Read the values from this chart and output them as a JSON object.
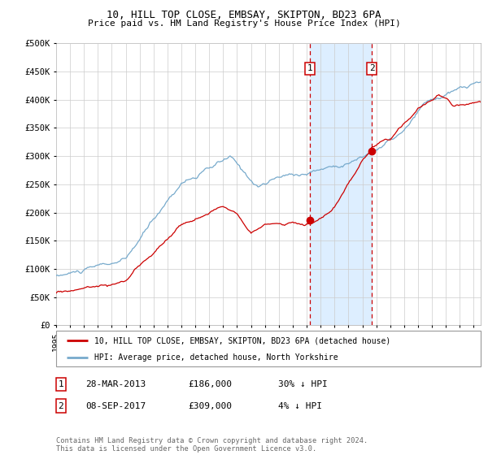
{
  "title1": "10, HILL TOP CLOSE, EMBSAY, SKIPTON, BD23 6PA",
  "title2": "Price paid vs. HM Land Registry's House Price Index (HPI)",
  "ylim": [
    0,
    500000
  ],
  "yticks": [
    0,
    50000,
    100000,
    150000,
    200000,
    250000,
    300000,
    350000,
    400000,
    450000,
    500000
  ],
  "ytick_labels": [
    "£0",
    "£50K",
    "£100K",
    "£150K",
    "£200K",
    "£250K",
    "£300K",
    "£350K",
    "£400K",
    "£450K",
    "£500K"
  ],
  "purchase1_date": 2013.24,
  "purchase1_price": 186000,
  "purchase1_label": "1",
  "purchase2_date": 2017.68,
  "purchase2_price": 309000,
  "purchase2_label": "2",
  "red_color": "#cc0000",
  "blue_color": "#77aacc",
  "shade_color": "#ddeeff",
  "grid_color": "#cccccc",
  "legend_line1": "10, HILL TOP CLOSE, EMBSAY, SKIPTON, BD23 6PA (detached house)",
  "legend_line2": "HPI: Average price, detached house, North Yorkshire",
  "table_row1_num": "1",
  "table_row1_date": "28-MAR-2013",
  "table_row1_price": "£186,000",
  "table_row1_hpi": "30% ↓ HPI",
  "table_row2_num": "2",
  "table_row2_date": "08-SEP-2017",
  "table_row2_price": "£309,000",
  "table_row2_hpi": "4% ↓ HPI",
  "footer": "Contains HM Land Registry data © Crown copyright and database right 2024.\nThis data is licensed under the Open Government Licence v3.0.",
  "xmin": 1995,
  "xmax": 2025.5
}
